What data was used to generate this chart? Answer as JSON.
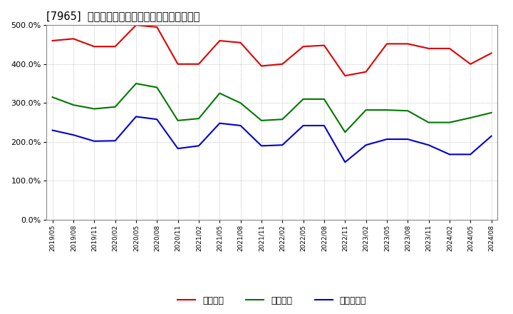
{
  "title": "[7965]  流動比率、当座比率、現預金比率の推移",
  "x_labels": [
    "2019/05",
    "2019/08",
    "2019/11",
    "2020/02",
    "2020/05",
    "2020/08",
    "2020/11",
    "2021/02",
    "2021/05",
    "2021/08",
    "2021/11",
    "2022/02",
    "2022/05",
    "2022/08",
    "2022/11",
    "2023/02",
    "2023/05",
    "2023/08",
    "2023/11",
    "2024/02",
    "2024/05",
    "2024/08"
  ],
  "ryudo": [
    460,
    465,
    445,
    445,
    500,
    495,
    400,
    400,
    460,
    455,
    395,
    400,
    445,
    448,
    370,
    380,
    452,
    452,
    440,
    440,
    400,
    428
  ],
  "toza": [
    315,
    295,
    285,
    290,
    350,
    340,
    255,
    260,
    325,
    300,
    255,
    258,
    310,
    310,
    225,
    282,
    282,
    280,
    250,
    250,
    262,
    275
  ],
  "genyo": [
    230,
    218,
    202,
    203,
    265,
    258,
    183,
    190,
    248,
    242,
    190,
    192,
    242,
    242,
    148,
    192,
    207,
    207,
    192,
    168,
    168,
    215
  ],
  "ryudo_color": "#dd0000",
  "toza_color": "#007700",
  "genyo_color": "#0000cc",
  "legend_label_ryudo": "流動比率",
  "legend_label_toza": "当座比率",
  "legend_label_genyo": "現預金比率",
  "ylim": [
    0,
    500
  ],
  "yticks": [
    0,
    100,
    200,
    300,
    400,
    500
  ],
  "grid_color": "#999999",
  "bg_color": "#ffffff",
  "plot_bg_color": "#ffffff"
}
